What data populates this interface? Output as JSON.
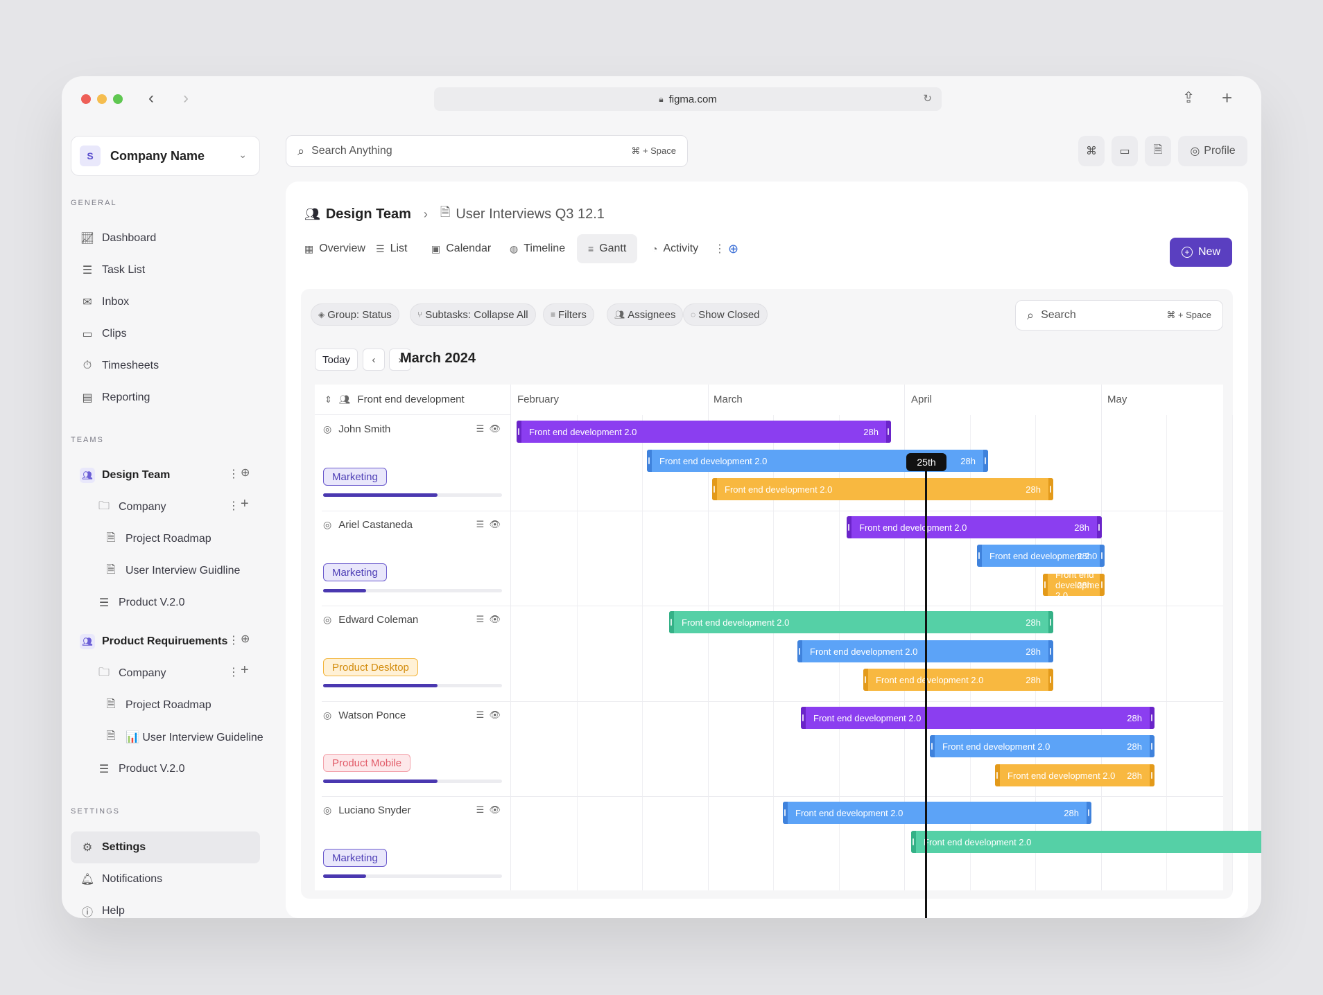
{
  "browser": {
    "url": "figma.com"
  },
  "sidebar": {
    "company_badge": "S",
    "company_name": "Company Name",
    "general_title": "GENERAL",
    "general": [
      {
        "label": "Dashboard",
        "icon": "chart-line-icon"
      },
      {
        "label": "Task List",
        "icon": "checklist-icon"
      },
      {
        "label": "Inbox",
        "icon": "mail-icon"
      },
      {
        "label": "Clips",
        "icon": "video-icon"
      },
      {
        "label": "Timesheets",
        "icon": "stopwatch-icon"
      },
      {
        "label": "Reporting",
        "icon": "report-icon"
      }
    ],
    "teams_title": "TEAMS",
    "teams": [
      {
        "label": "Design Team",
        "company": "Company",
        "docs": [
          "Project Roadmap",
          "User Interview Guidline"
        ],
        "product": "Product V.2.0"
      },
      {
        "label": "Product Requiruements",
        "company": "Company",
        "docs": [
          "Project Roadmap",
          "📊 User Interview Guideline"
        ],
        "product": "Product V.2.0"
      }
    ],
    "settings_title": "SETTINGS",
    "settings": [
      {
        "label": "Settings",
        "icon": "gear-icon"
      },
      {
        "label": "Notifications",
        "icon": "bell-icon"
      },
      {
        "label": "Help",
        "icon": "help-icon"
      }
    ]
  },
  "header": {
    "search_placeholder": "Search Anything",
    "search_kbd": "⌘ + Space",
    "profile": "Profile"
  },
  "page": {
    "team": "Design Team",
    "doc": "User Interviews Q3 12.1",
    "tabs": [
      {
        "label": "Overview",
        "icon": "grid-icon"
      },
      {
        "label": "List",
        "icon": "list-icon"
      },
      {
        "label": "Calendar",
        "icon": "calendar-icon"
      },
      {
        "label": "Timeline",
        "icon": "globe-icon"
      },
      {
        "label": "Gantt",
        "icon": "gantt-icon",
        "active": true
      },
      {
        "label": "Activity",
        "icon": "activity-icon"
      }
    ],
    "new_label": "New"
  },
  "gantt": {
    "filters": [
      "Group: Status",
      "Subtasks: Collapse All",
      "Filters",
      "Assignees",
      "Show Closed"
    ],
    "search_placeholder": "Search",
    "search_kbd": "⌘ + Space",
    "today_label": "Today",
    "month": "March 2024",
    "group_label": "Front end development",
    "months": [
      "February",
      "March",
      "April",
      "May"
    ],
    "today_marker": "25th",
    "colors": {
      "purple": "#8b3ef0",
      "blue": "#5ca3f7",
      "orange": "#f8b840",
      "green": "#55d0a6"
    },
    "people": [
      {
        "name": "John Smith",
        "tag": "Marketing",
        "tag_style": "purple",
        "progress": 0.64,
        "bars": [
          {
            "label": "Front end development 2.0",
            "hours": "28h",
            "color": "purple"
          },
          {
            "label": "Front end development 2.0",
            "hours": "28h",
            "color": "blue"
          },
          {
            "label": "Front end development 2.0",
            "hours": "28h",
            "color": "orange"
          }
        ]
      },
      {
        "name": "Ariel Castaneda",
        "tag": "Marketing",
        "tag_style": "purple",
        "progress": 0.24,
        "bars": [
          {
            "label": "Front end development 2.0",
            "hours": "28h",
            "color": "purple"
          },
          {
            "label": "Front end development 2.0",
            "hours": "28h",
            "color": "blue"
          },
          {
            "label": "Front end development 2.0",
            "hours": "28h",
            "color": "orange"
          }
        ]
      },
      {
        "name": "Edward Coleman",
        "tag": "Product Desktop",
        "tag_style": "orange",
        "progress": 0.64,
        "bars": [
          {
            "label": "Front end development 2.0",
            "hours": "28h",
            "color": "green"
          },
          {
            "label": "Front end development 2.0",
            "hours": "28h",
            "color": "blue"
          },
          {
            "label": "Front end development 2.0",
            "hours": "28h",
            "color": "orange"
          }
        ]
      },
      {
        "name": "Watson Ponce",
        "tag": "Product Mobile",
        "tag_style": "red",
        "progress": 0.64,
        "bars": [
          {
            "label": "Front end development 2.0",
            "hours": "28h",
            "color": "purple"
          },
          {
            "label": "Front end development 2.0",
            "hours": "28h",
            "color": "blue"
          },
          {
            "label": "Front end development 2.0",
            "hours": "28h",
            "color": "orange"
          }
        ]
      },
      {
        "name": "Luciano Snyder",
        "tag": "Marketing",
        "tag_style": "purple",
        "progress": 0.24,
        "bars": [
          {
            "label": "Front end development 2.0",
            "hours": "28h",
            "color": "blue"
          },
          {
            "label": "Front end development 2.0",
            "hours": "",
            "color": "green"
          }
        ]
      }
    ]
  }
}
